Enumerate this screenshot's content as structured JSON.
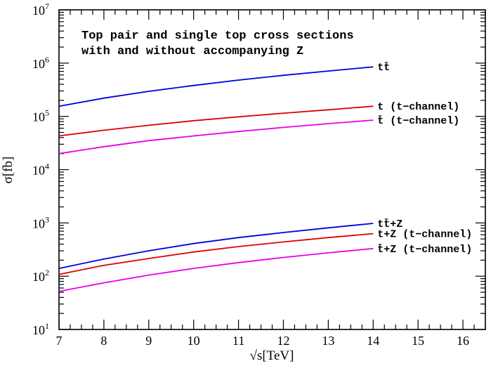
{
  "chart_data": {
    "type": "line",
    "title": "",
    "annotation_lines": [
      "Top pair and single top cross sections",
      "with and without accompanying Z"
    ],
    "xlabel": "√s[TeV]",
    "ylabel": "σ[fb]",
    "xlim": [
      7,
      16.5
    ],
    "ylim": [
      10,
      10000000
    ],
    "y_scale": "log",
    "grid": false,
    "legend": "labels at line ends",
    "x_ticks": [
      {
        "value": 7,
        "label": "7"
      },
      {
        "value": 8,
        "label": "8"
      },
      {
        "value": 9,
        "label": "9"
      },
      {
        "value": 10,
        "label": "10"
      },
      {
        "value": 11,
        "label": "11"
      },
      {
        "value": 12,
        "label": "12"
      },
      {
        "value": 13,
        "label": "13"
      },
      {
        "value": 14,
        "label": "14"
      },
      {
        "value": 15,
        "label": "15"
      },
      {
        "value": 16,
        "label": "16"
      }
    ],
    "y_ticks": [
      {
        "value": 10,
        "base": "10",
        "exp": "1"
      },
      {
        "value": 100,
        "base": "10",
        "exp": "2"
      },
      {
        "value": 1000,
        "base": "10",
        "exp": "3"
      },
      {
        "value": 10000,
        "base": "10",
        "exp": "4"
      },
      {
        "value": 100000,
        "base": "10",
        "exp": "5"
      },
      {
        "value": 1000000,
        "base": "10",
        "exp": "6"
      },
      {
        "value": 10000000,
        "base": "10",
        "exp": "7"
      }
    ],
    "series": [
      {
        "name": "tt̄",
        "color": "#0000dd",
        "x": [
          7,
          8,
          9,
          10,
          11,
          12,
          13,
          14
        ],
        "y": [
          155000,
          220000,
          295000,
          380000,
          480000,
          590000,
          710000,
          850000
        ]
      },
      {
        "name": "t (t−channel)",
        "color": "#e00000",
        "x": [
          7,
          8,
          9,
          10,
          11,
          12,
          13,
          14
        ],
        "y": [
          43000,
          55000,
          68000,
          83000,
          98000,
          115000,
          133000,
          155000
        ]
      },
      {
        "name": "t̄ (t−channel)",
        "color": "#e600e6",
        "x": [
          7,
          8,
          9,
          10,
          11,
          12,
          13,
          14
        ],
        "y": [
          20000,
          27000,
          35000,
          43000,
          52000,
          62000,
          73000,
          85000
        ]
      },
      {
        "name": "tt̄+Z",
        "color": "#0000dd",
        "x": [
          7,
          8,
          9,
          10,
          11,
          12,
          13,
          14
        ],
        "y": [
          140,
          210,
          300,
          410,
          530,
          660,
          810,
          980
        ]
      },
      {
        "name": "t+Z (t−channel)",
        "color": "#e00000",
        "x": [
          7,
          8,
          9,
          10,
          11,
          12,
          13,
          14
        ],
        "y": [
          108,
          160,
          215,
          285,
          360,
          440,
          530,
          630
        ]
      },
      {
        "name": "t̄+Z (t−channel)",
        "color": "#e600e6",
        "x": [
          7,
          8,
          9,
          10,
          11,
          12,
          13,
          14
        ],
        "y": [
          52,
          75,
          105,
          140,
          180,
          225,
          275,
          330
        ]
      }
    ]
  }
}
